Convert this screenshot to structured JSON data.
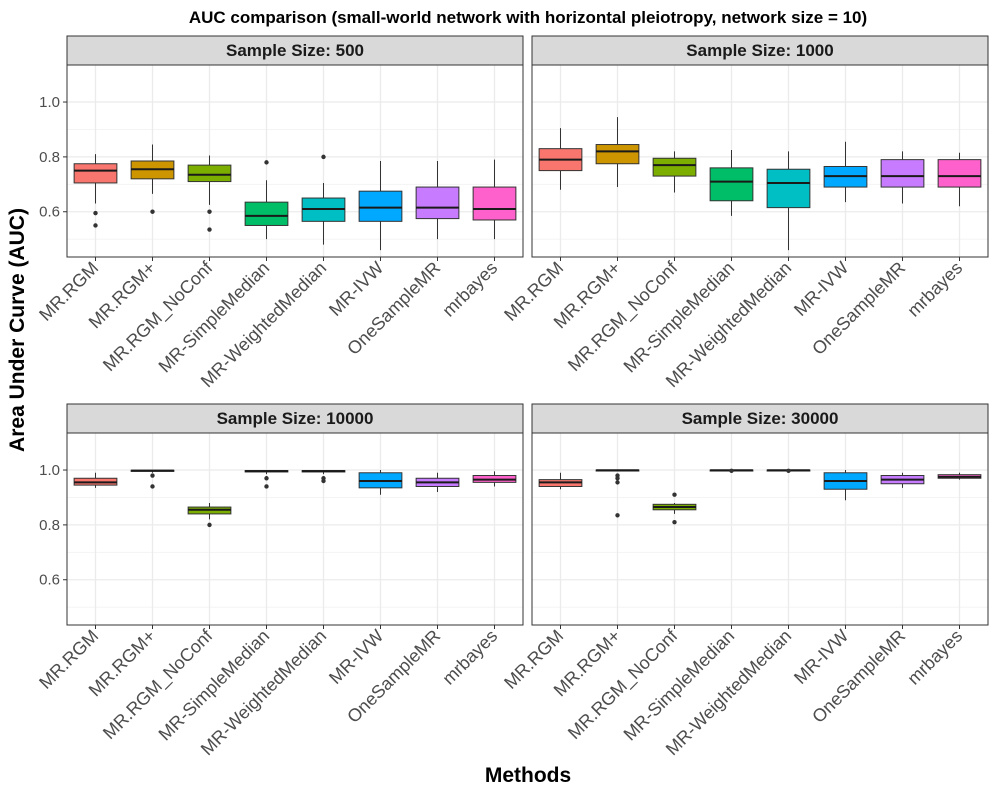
{
  "chart_data": {
    "type": "boxplot",
    "title": "AUC comparison (small-world network with horizontal pleiotropy, network size = 10)",
    "xlabel": "Methods",
    "ylabel": "Area Under Curve (AUC)",
    "ylim": [
      0.435,
      1.135
    ],
    "yticks": [
      0.6,
      0.8,
      1.0
    ],
    "ytick_labels": [
      "0.6",
      "0.8",
      "1.0"
    ],
    "grid": true,
    "legend": "none",
    "categories": [
      "MR.RGM",
      "MR.RGM+",
      "MR.RGM_NoConf",
      "MR-SimpleMedian",
      "MR-WeightedMedian",
      "MR-IVW",
      "OneSampleMR",
      "mrbayes"
    ],
    "colors": [
      "#F8766D",
      "#CD9600",
      "#7CAE00",
      "#00BE67",
      "#00BFC4",
      "#00A9FF",
      "#C77CFF",
      "#FF61CC"
    ],
    "facets": [
      {
        "label": "Sample Size: 500",
        "boxes": [
          {
            "min": 0.63,
            "q1": 0.705,
            "median": 0.75,
            "q3": 0.775,
            "max": 0.81,
            "outliers": [
              0.595,
              0.55
            ]
          },
          {
            "min": 0.665,
            "q1": 0.72,
            "median": 0.755,
            "q3": 0.785,
            "max": 0.845,
            "outliers": [
              0.6
            ]
          },
          {
            "min": 0.625,
            "q1": 0.71,
            "median": 0.735,
            "q3": 0.77,
            "max": 0.805,
            "outliers": [
              0.6,
              0.535
            ]
          },
          {
            "min": 0.5,
            "q1": 0.55,
            "median": 0.585,
            "q3": 0.635,
            "max": 0.715,
            "outliers": [
              0.78
            ]
          },
          {
            "min": 0.48,
            "q1": 0.565,
            "median": 0.61,
            "q3": 0.65,
            "max": 0.705,
            "outliers": [
              0.8
            ]
          },
          {
            "min": 0.46,
            "q1": 0.565,
            "median": 0.615,
            "q3": 0.675,
            "max": 0.785,
            "outliers": []
          },
          {
            "min": 0.5,
            "q1": 0.575,
            "median": 0.615,
            "q3": 0.69,
            "max": 0.785,
            "outliers": []
          },
          {
            "min": 0.5,
            "q1": 0.57,
            "median": 0.61,
            "q3": 0.69,
            "max": 0.79,
            "outliers": []
          }
        ]
      },
      {
        "label": "Sample Size: 1000",
        "boxes": [
          {
            "min": 0.68,
            "q1": 0.75,
            "median": 0.79,
            "q3": 0.83,
            "max": 0.905,
            "outliers": []
          },
          {
            "min": 0.69,
            "q1": 0.775,
            "median": 0.82,
            "q3": 0.845,
            "max": 0.945,
            "outliers": []
          },
          {
            "min": 0.67,
            "q1": 0.73,
            "median": 0.77,
            "q3": 0.795,
            "max": 0.82,
            "outliers": []
          },
          {
            "min": 0.585,
            "q1": 0.64,
            "median": 0.71,
            "q3": 0.76,
            "max": 0.825,
            "outliers": []
          },
          {
            "min": 0.46,
            "q1": 0.615,
            "median": 0.705,
            "q3": 0.755,
            "max": 0.82,
            "outliers": []
          },
          {
            "min": 0.635,
            "q1": 0.69,
            "median": 0.73,
            "q3": 0.765,
            "max": 0.855,
            "outliers": []
          },
          {
            "min": 0.63,
            "q1": 0.69,
            "median": 0.73,
            "q3": 0.79,
            "max": 0.82,
            "outliers": []
          },
          {
            "min": 0.62,
            "q1": 0.69,
            "median": 0.73,
            "q3": 0.79,
            "max": 0.815,
            "outliers": []
          }
        ]
      },
      {
        "label": "Sample Size: 10000",
        "boxes": [
          {
            "min": 0.935,
            "q1": 0.945,
            "median": 0.955,
            "q3": 0.97,
            "max": 0.99,
            "outliers": []
          },
          {
            "min": 0.99,
            "q1": 0.995,
            "median": 0.998,
            "q3": 0.999,
            "max": 1.0,
            "outliers": [
              0.98,
              0.94
            ]
          },
          {
            "min": 0.82,
            "q1": 0.84,
            "median": 0.855,
            "q3": 0.865,
            "max": 0.88,
            "outliers": [
              0.8
            ]
          },
          {
            "min": 0.985,
            "q1": 0.993,
            "median": 0.996,
            "q3": 0.998,
            "max": 1.0,
            "outliers": [
              0.97,
              0.94
            ]
          },
          {
            "min": 0.985,
            "q1": 0.993,
            "median": 0.996,
            "q3": 0.998,
            "max": 1.0,
            "outliers": [
              0.97,
              0.96
            ]
          },
          {
            "min": 0.91,
            "q1": 0.935,
            "median": 0.96,
            "q3": 0.99,
            "max": 1.0,
            "outliers": []
          },
          {
            "min": 0.92,
            "q1": 0.94,
            "median": 0.955,
            "q3": 0.97,
            "max": 0.99,
            "outliers": []
          },
          {
            "min": 0.94,
            "q1": 0.955,
            "median": 0.965,
            "q3": 0.98,
            "max": 0.995,
            "outliers": []
          }
        ]
      },
      {
        "label": "Sample Size: 30000",
        "boxes": [
          {
            "min": 0.93,
            "q1": 0.94,
            "median": 0.955,
            "q3": 0.965,
            "max": 0.99,
            "outliers": []
          },
          {
            "min": 0.995,
            "q1": 0.998,
            "median": 0.999,
            "q3": 1.0,
            "max": 1.0,
            "outliers": [
              0.98,
              0.97,
              0.955,
              0.835
            ]
          },
          {
            "min": 0.84,
            "q1": 0.855,
            "median": 0.865,
            "q3": 0.875,
            "max": 0.88,
            "outliers": [
              0.91,
              0.81
            ]
          },
          {
            "min": 0.995,
            "q1": 0.998,
            "median": 0.999,
            "q3": 1.0,
            "max": 1.0,
            "outliers": [
              0.997
            ]
          },
          {
            "min": 0.995,
            "q1": 0.998,
            "median": 0.999,
            "q3": 1.0,
            "max": 1.0,
            "outliers": [
              0.997
            ]
          },
          {
            "min": 0.89,
            "q1": 0.93,
            "median": 0.96,
            "q3": 0.99,
            "max": 1.0,
            "outliers": []
          },
          {
            "min": 0.935,
            "q1": 0.95,
            "median": 0.965,
            "q3": 0.98,
            "max": 0.99,
            "outliers": []
          },
          {
            "min": 0.965,
            "q1": 0.97,
            "median": 0.975,
            "q3": 0.983,
            "max": 0.99,
            "outliers": []
          }
        ]
      }
    ]
  }
}
